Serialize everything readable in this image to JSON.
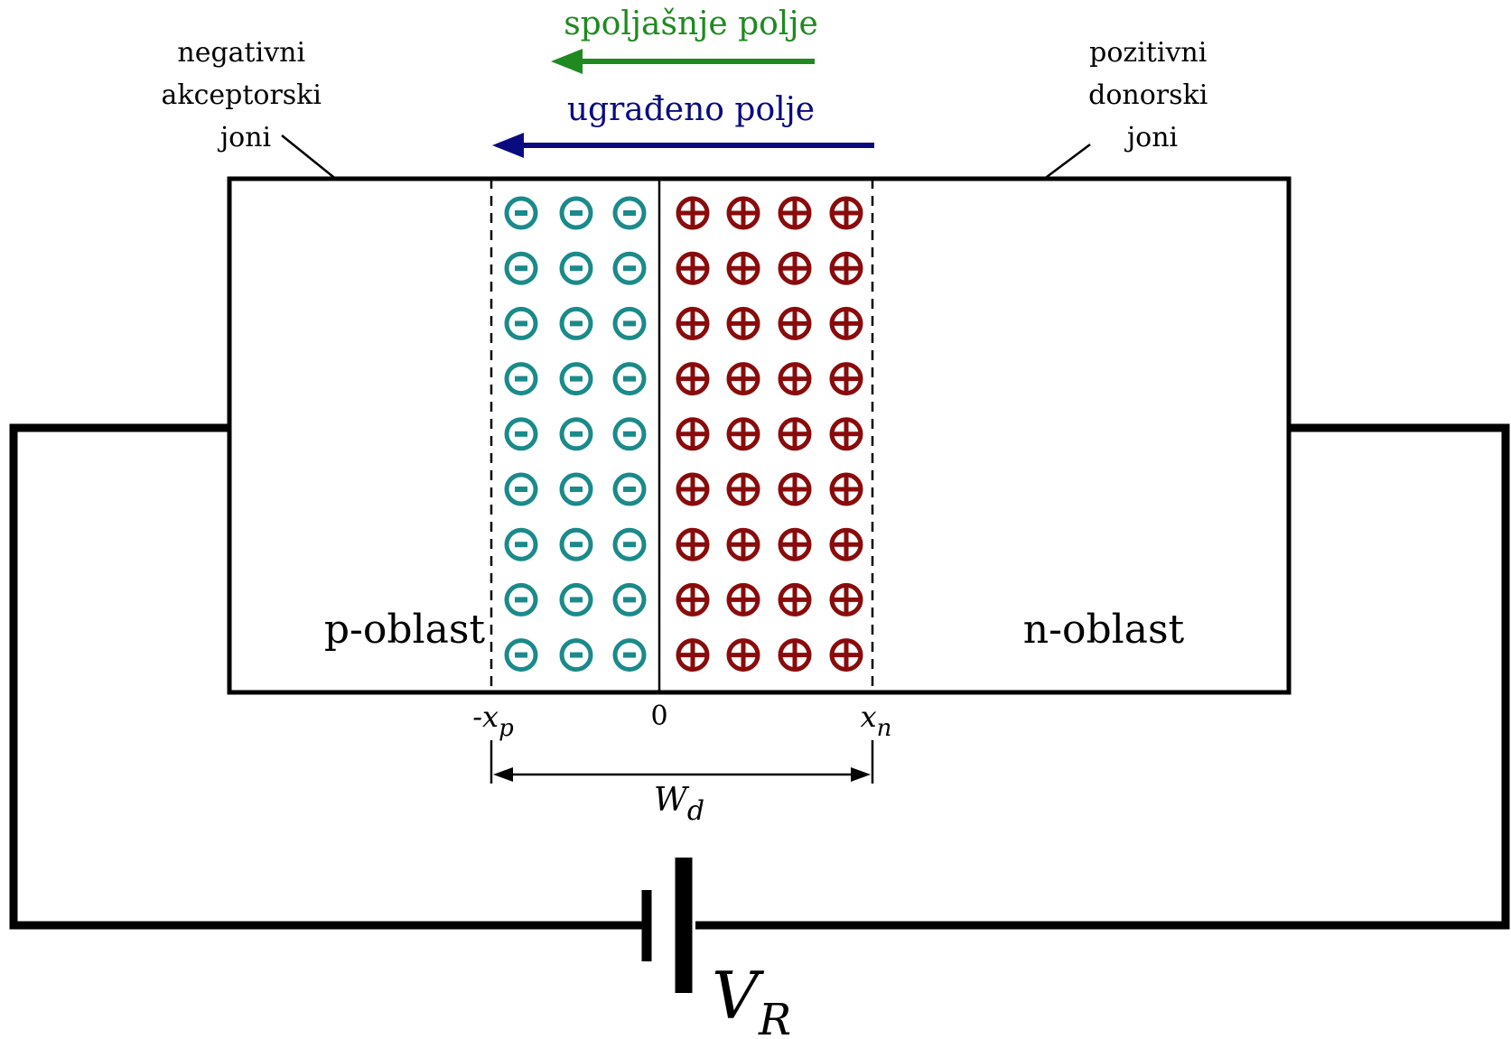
{
  "labels": {
    "external_field": "spoljašnje polje",
    "builtin_field": "ugrađeno polje",
    "acceptor_ions": [
      "negativni",
      "akceptorski",
      "joni"
    ],
    "donor_ions": [
      "pozitivni",
      "donorski",
      "joni"
    ],
    "p_region": "p-oblast",
    "n_region": "n-oblast",
    "xp_prefix": "-x",
    "xp_sub": "p",
    "zero": "0",
    "xn_main": "x",
    "xn_sub": "n",
    "wd_main": "W",
    "wd_sub": "d",
    "voltage_main": "V",
    "voltage_sub": "R"
  },
  "ions": {
    "negative_rows": 9,
    "negative_cols": 3,
    "positive_rows": 9,
    "positive_cols": 4
  },
  "colors": {
    "external_field": "#1f8a1f",
    "builtin_field": "#0b0b80",
    "negative_ion": "#1a8a8a",
    "positive_ion": "#8a0b0b",
    "line": "#000000"
  }
}
